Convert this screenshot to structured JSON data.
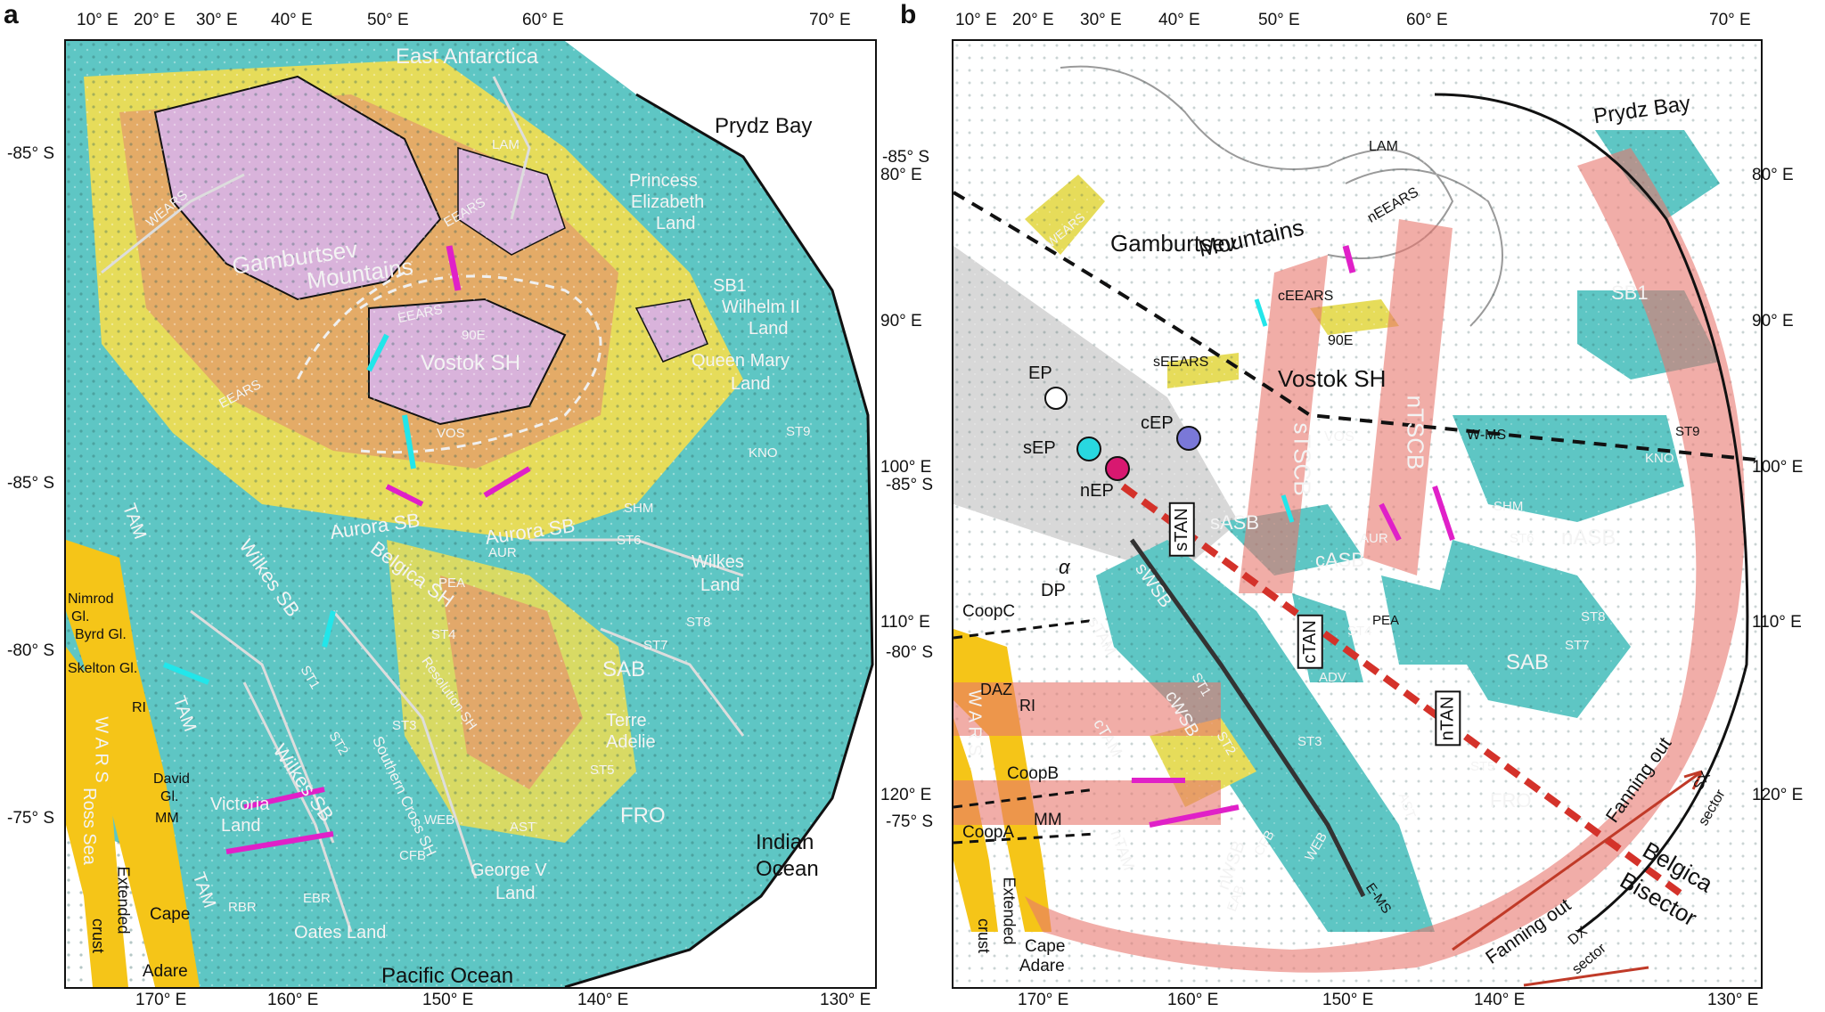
{
  "panel_a": {
    "letter": "a",
    "top_ticks": [
      "10° E",
      "20° E",
      "30° E",
      "40° E",
      "50° E",
      "60° E",
      "70° E"
    ],
    "bottom_ticks": [
      "170° E",
      "160° E",
      "150° E",
      "140° E",
      "130° E"
    ],
    "left_ticks": [
      "-85° S",
      "-85° S",
      "-80° S",
      "-75° S"
    ],
    "right_ticks": [
      "80° E",
      "90° E",
      "100° E",
      "110° E",
      "120° E"
    ],
    "labels": {
      "east_antarctica": "East Antarctica",
      "prydz_bay": "Prydz Bay",
      "lam": "LAM",
      "princess": "Princess",
      "elizabeth": "Elizabeth",
      "land1": "Land",
      "wears": "WEARS",
      "eears_top": "EEARS",
      "gamburtsev": "Gamburtsev",
      "mountains": "Mountains",
      "sb1": "SB1",
      "wilhelm": "Wilhelm II",
      "land2": "Land",
      "queen_mary": "Queen Mary",
      "land3": "Land",
      "eears_mid": "EEARS",
      "90e": "90E",
      "vostok_sh": "Vostok SH",
      "eears_left": "EEARS",
      "vos": "VOS",
      "st9": "ST9",
      "kno": "KNO",
      "shm": "SHM",
      "st6": "ST6",
      "aurora_sb1": "Aurora SB",
      "aurora_sb2": "Aurora SB",
      "aur": "AUR",
      "wilkes_land1": "Wilkes",
      "wilkes_land2": "Land",
      "belgica": "Belgica SH",
      "pea": "PEA",
      "st4": "ST4",
      "st8": "ST8",
      "st7": "ST7",
      "sab": "SAB",
      "wilkes_sb1": "Wilkes SB",
      "wilkes_sb2": "Wilkes SB",
      "st1": "ST1",
      "st2": "ST2",
      "st3": "ST3",
      "resolution": "Resolution SH",
      "terre": "Terre",
      "adelie": "Adelie",
      "st5": "ST5",
      "fro": "FRO",
      "southern_cross": "Southern Cross SH",
      "web": "WEB",
      "ast": "AST",
      "george": "George V",
      "land4": "Land",
      "cfb": "CFB",
      "ebr": "EBR",
      "oates": "Oates Land",
      "rbr": "RBR",
      "victoria": "Victoria",
      "land5": "Land",
      "tam1": "TAM",
      "tam2": "TAM",
      "tam3": "TAM",
      "nimrod": "Nimrod",
      "gl1": "Gl.",
      "byrd": "Byrd Gl.",
      "skelton": "Skelton Gl.",
      "ri": "RI",
      "wars": "W A R S",
      "ross": "Ross Sea",
      "david": "David",
      "gl2": "Gl.",
      "mm": "MM",
      "extended": "Extended",
      "crust": "crust",
      "cape": "Cape",
      "adare": "Adare",
      "indian": "Indian",
      "ocean": "Ocean",
      "pacific": "Pacific Ocean"
    }
  },
  "panel_b": {
    "letter": "b",
    "top_ticks": [
      "10° E",
      "20° E",
      "30° E",
      "40° E",
      "50° E",
      "60° E",
      "70° E"
    ],
    "bottom_ticks": [
      "170° E",
      "160° E",
      "150° E",
      "140° E",
      "130° E"
    ],
    "left_ticks": [
      "-85° S",
      "-85° S",
      "-80° S",
      "-75° S"
    ],
    "right_ticks": [
      "80° E",
      "90° E",
      "100° E",
      "110° E",
      "120° E"
    ],
    "labels": {
      "prydz_bay": "Prydz Bay",
      "lam": "LAM",
      "wears": "WEARS",
      "gamburtsev": "Gamburtsev",
      "mountains": "Mountains",
      "neears": "nEEARS",
      "ceears": "cEEARS",
      "90e": "90E",
      "seears": "sEEARS",
      "vostok_sh": "Vostok SH",
      "stscb": "sTSCB",
      "ntscb": "nTSCB",
      "sb1": "SB1",
      "ep": "EP",
      "sep": "sEP",
      "cep": "cEP",
      "nep": "nEP",
      "vos": "VOS",
      "wms": "W-MS",
      "st9": "ST9",
      "kno": "KNO",
      "shm": "SHM",
      "st6": "ST6",
      "nasb": "nASB",
      "stan": "sTAN",
      "sasb": "sASB",
      "aur": "AUR",
      "casb": "cASB",
      "ctan": "cTAN",
      "pea": "PEA",
      "st4": "ST4",
      "st8": "ST8",
      "st7": "ST7",
      "sab": "SAB",
      "alpha": "α",
      "dp": "DP",
      "swsb": "sWSB",
      "stam": "sTAM",
      "coopc": "CoopC",
      "st1": "ST1",
      "adv": "ADV",
      "ntan": "nTAN",
      "daz": "DAZ",
      "ri": "RI",
      "wars": "W A R S",
      "ctam": "cTAM",
      "cwsb": "cWSB",
      "st2": "ST2",
      "st3": "ST3",
      "st5": "ST5",
      "fro": "FRO",
      "coopb": "CoopB",
      "ast": "AST",
      "coopa": "CoopA",
      "mm": "MM",
      "ntam": "nTAM",
      "nwsb": "nWSB",
      "cfb": "CFB",
      "eab": "EAB",
      "web": "WEB",
      "ems": "E-MS",
      "extended": "Extended",
      "crust": "crust",
      "cape": "Cape",
      "adare": "Adare",
      "fanning_out1": "Fanning out",
      "fanning_out2": "Fanning out",
      "sx": "SX",
      "sx_sector": "sector",
      "dx": "DX",
      "dx_sector": "sector",
      "belgica": "Belgica",
      "bisector": "Bisector"
    }
  },
  "colors": {
    "teal": "#5ec6c4",
    "yellow": "#e6dc5a",
    "orange": "#e3a26a",
    "lilac": "#d9b3db",
    "salmon_band": "#e8776e",
    "gray_cone": "#d8d8d8",
    "wars_yellow": "#f5c518",
    "magenta": "#e020c8",
    "cyan": "#22e6ea",
    "red_bisector": "#d4322a",
    "dot_cyan": "#28d8e0",
    "dot_pink": "#d81870",
    "dot_blue": "#7a78d8"
  },
  "icons": [
    "north-arrow-icon"
  ]
}
